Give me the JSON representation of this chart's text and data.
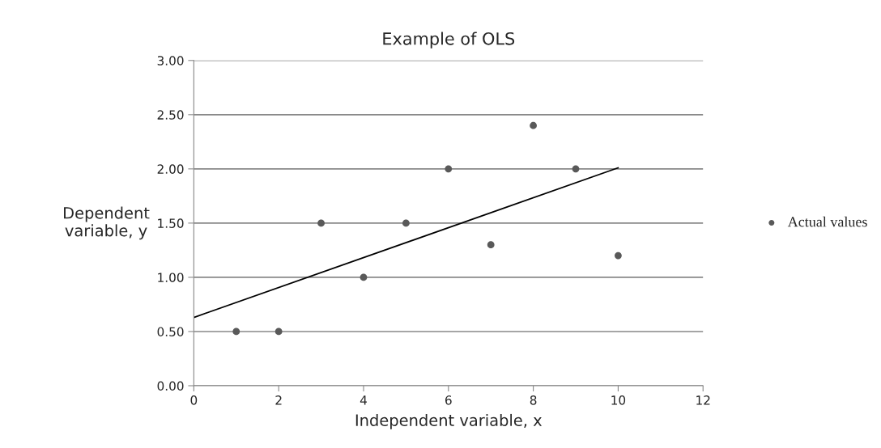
{
  "chart_data": {
    "type": "scatter",
    "title": "Example of OLS",
    "xlabel": "Independent variable, x",
    "ylabel": "Dependent\nvariable, y",
    "x": [
      1,
      2,
      3,
      4,
      5,
      6,
      7,
      8,
      9,
      10
    ],
    "series": [
      {
        "name": "Actual values",
        "marker": "circle",
        "color": "#595959",
        "values": [
          0.5,
          0.5,
          1.5,
          1.0,
          1.5,
          2.0,
          1.3,
          2.4,
          2.0,
          1.2
        ]
      },
      {
        "type": "line",
        "marker": "none",
        "color": "#000000",
        "x": [
          0,
          10
        ],
        "values": [
          0.63,
          2.01
        ]
      }
    ],
    "xlim": [
      0,
      12
    ],
    "xticks": [
      0,
      2,
      4,
      6,
      8,
      10,
      12
    ],
    "ylim": [
      0,
      3
    ],
    "yticks": [
      {
        "value": 0,
        "label": "0.00"
      },
      {
        "value": 0.5,
        "label": "0.50"
      },
      {
        "value": 1,
        "label": "1.00"
      },
      {
        "value": 1.5,
        "label": "1.50"
      },
      {
        "value": 2,
        "label": "2.00"
      },
      {
        "value": 2.5,
        "label": "2.50"
      },
      {
        "value": 3,
        "label": "3.00"
      }
    ],
    "grid": "y",
    "legend": "right"
  }
}
